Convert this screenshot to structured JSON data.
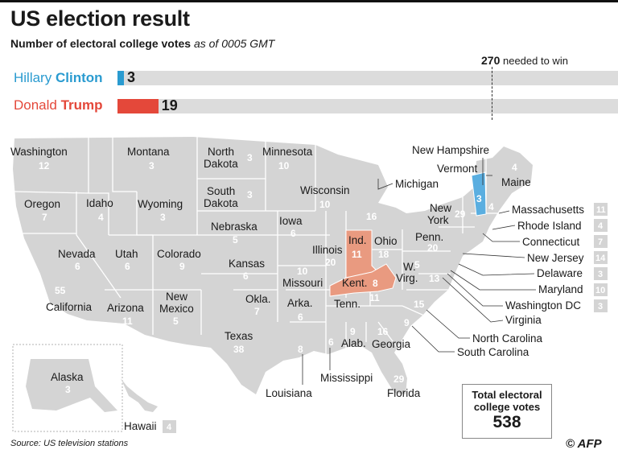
{
  "title": "US election result",
  "subtitle": {
    "main": "Number of electoral college votes",
    "time": "as of 0005 GMT"
  },
  "threshold": {
    "value": "270",
    "text": "needed to win"
  },
  "candidates": [
    {
      "first": "Hillary",
      "last": "Clinton",
      "votes": 3,
      "color": "#2a9bd0"
    },
    {
      "first": "Donald",
      "last": "Trump",
      "votes": 19,
      "color": "#e4483a"
    }
  ],
  "colors": {
    "land": "#d6d6d6",
    "state": "#cfcfcf",
    "clinton": "#5aaee0",
    "trump": "#e99a80",
    "border": "#ffffff"
  },
  "states": {
    "washington": {
      "name": "Washington",
      "votes": "12"
    },
    "oregon": {
      "name": "Oregon",
      "votes": "7"
    },
    "california": {
      "name": "California",
      "votes": "55"
    },
    "nevada": {
      "name": "Nevada",
      "votes": "6"
    },
    "idaho": {
      "name": "Idaho",
      "votes": "4"
    },
    "montana": {
      "name": "Montana",
      "votes": "3"
    },
    "wyoming": {
      "name": "Wyoming",
      "votes": "3"
    },
    "utah": {
      "name": "Utah",
      "votes": "6"
    },
    "arizona": {
      "name": "Arizona",
      "votes": "11"
    },
    "colorado": {
      "name": "Colorado",
      "votes": "9"
    },
    "new_mexico": {
      "name": "New\nMexico",
      "line1": "New",
      "line2": "Mexico",
      "votes": "5"
    },
    "north_dakota": {
      "line1": "North",
      "line2": "Dakota",
      "votes": "3"
    },
    "south_dakota": {
      "line1": "South",
      "line2": "Dakota",
      "votes": "3"
    },
    "nebraska": {
      "name": "Nebraska",
      "votes": "5"
    },
    "kansas": {
      "name": "Kansas",
      "votes": "6"
    },
    "oklahoma": {
      "name": "Okla.",
      "votes": "7"
    },
    "texas": {
      "name": "Texas",
      "votes": "38"
    },
    "minnesota": {
      "name": "Minnesota",
      "votes": "10"
    },
    "iowa": {
      "name": "Iowa",
      "votes": "6"
    },
    "missouri": {
      "name": "Missouri",
      "votes": "10"
    },
    "arkansas": {
      "name": "Arka.",
      "votes": "6"
    },
    "louisiana": {
      "name": "Louisiana",
      "votes": "8"
    },
    "wisconsin": {
      "name": "Wisconsin",
      "votes": "10"
    },
    "illinois": {
      "name": "Illinois",
      "votes": "20"
    },
    "michigan": {
      "name": "Michigan",
      "votes": "16"
    },
    "indiana": {
      "name": "Ind.",
      "votes": "11"
    },
    "ohio": {
      "name": "Ohio",
      "votes": "18"
    },
    "kentucky": {
      "name": "Kent.",
      "votes": "8"
    },
    "tennessee": {
      "name": "Tenn.",
      "votes": "11"
    },
    "mississippi": {
      "name": "Mississippi",
      "votes": "6"
    },
    "alabama": {
      "name": "Alab.",
      "votes": "9"
    },
    "georgia": {
      "name": "Georgia",
      "votes": "16"
    },
    "florida": {
      "name": "Florida",
      "votes": "29"
    },
    "south_carolina": {
      "name": "South Carolina",
      "votes": "9"
    },
    "north_carolina": {
      "name": "North Carolina",
      "votes": "15"
    },
    "virginia": {
      "name": "Virginia",
      "votes": "13"
    },
    "west_virginia": {
      "line1": "W.",
      "line2": "Virg.",
      "votes": "5"
    },
    "pennsylvania": {
      "name": "Penn.",
      "votes": "20"
    },
    "new_york": {
      "line1": "New",
      "line2": "York",
      "votes": "29"
    },
    "vermont": {
      "name": "Vermont",
      "votes": "3"
    },
    "new_hampshire": {
      "name": "New Hampshire",
      "votes": "4"
    },
    "maine": {
      "name": "Maine",
      "votes": "4"
    },
    "massachusetts": {
      "name": "Massachusetts",
      "votes": "11"
    },
    "rhode_island": {
      "name": "Rhode Island",
      "votes": "4"
    },
    "connecticut": {
      "name": "Connecticut",
      "votes": "7"
    },
    "new_jersey": {
      "name": "New Jersey",
      "votes": "14"
    },
    "delaware": {
      "name": "Delaware",
      "votes": "3"
    },
    "maryland": {
      "name": "Maryland",
      "votes": "10"
    },
    "washington_dc": {
      "name": "Washington DC",
      "votes": "3"
    },
    "alaska": {
      "name": "Alaska",
      "votes": "3"
    },
    "hawaii": {
      "name": "Hawaii",
      "votes": "4"
    }
  },
  "total": {
    "label": "Total electoral college votes",
    "line1": "Total electoral",
    "line2": "college votes",
    "value": "538"
  },
  "source": "Source: US television stations",
  "credit": "© AFP"
}
